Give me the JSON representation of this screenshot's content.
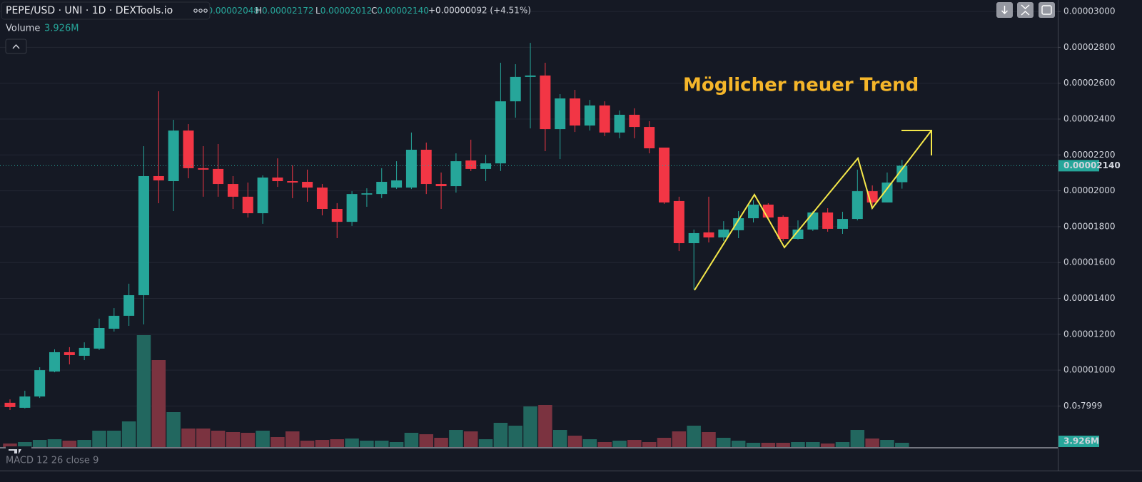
{
  "chart_data": {
    "type": "candlestick",
    "title": "PEPE/USD · UNI · 1D · DEXTools.io",
    "ohlc_header": [
      {
        "key": "O",
        "label": "0.00002048"
      },
      {
        "key": "H",
        "label": "0.00002172"
      },
      {
        "key": "L",
        "label": "0.00002012"
      },
      {
        "key": "C",
        "label": "0.00002140"
      }
    ],
    "change_label": "+0.00000092 (+4.51%)",
    "volume_title": "Volume",
    "volume_label": "3.926M",
    "annotation": "Möglicher neuer Trend",
    "indicator": "MACD 12 26 close 9",
    "up_color": "#26a69a",
    "down_color": "#f23645",
    "volume_up_color": "#22675f",
    "volume_down_color": "#7b3340",
    "grid": true,
    "ylim": [
      5.71e-06,
      3.064e-05
    ],
    "yticks": [
      {
        "value": 3e-05,
        "label": "0.00003000"
      },
      {
        "value": 2.8e-05,
        "label": "0.00002800"
      },
      {
        "value": 2.6e-05,
        "label": "0.00002600"
      },
      {
        "value": 2.4e-05,
        "label": "0.00002400"
      },
      {
        "value": 2.2e-05,
        "label": "0.00002200"
      },
      {
        "value": 2e-05,
        "label": "0.00002000"
      },
      {
        "value": 1.8e-05,
        "label": "0.00001800"
      },
      {
        "value": 1.6e-05,
        "label": "0.00001600"
      },
      {
        "value": 1.4e-05,
        "label": "0.00001400"
      },
      {
        "value": 1.2e-05,
        "label": "0.00001200"
      },
      {
        "value": 1e-05,
        "label": "0.00001000"
      },
      {
        "value": 7.999e-06,
        "label": "0.0₅7999"
      }
    ],
    "last_price": {
      "value": 2.14e-05,
      "label": "0.00002140"
    },
    "open": [
      8.18e-06,
      7.9e-06,
      8.53e-06,
      9.92e-06,
      1.1e-05,
      1.08e-05,
      1.12e-05,
      1.231e-05,
      1.303e-05,
      1.418e-05,
      2.082e-05,
      2.054e-05,
      2.336e-05,
      2.126e-05,
      2.122e-05,
      2.038e-05,
      1.967e-05,
      1.875e-05,
      2.074e-05,
      2.054e-05,
      2.05e-05,
      2.018e-05,
      1.899e-05,
      1.827e-05,
      1.979e-05,
      1.982e-05,
      2.018e-05,
      2.018e-05,
      2.229e-05,
      2.038e-05,
      2.026e-05,
      2.169e-05,
      2.122e-05,
      2.153e-05,
      2.499e-05,
      2.635e-05,
      2.643e-05,
      2.344e-05,
      2.515e-05,
      2.364e-05,
      2.476e-05,
      2.325e-05,
      2.424e-05,
      2.356e-05,
      2.241e-05,
      1.943e-05,
      1.708e-05,
      1.768e-05,
      1.74e-05,
      1.78e-05,
      1.847e-05,
      1.923e-05,
      1.855e-05,
      1.732e-05,
      1.784e-05,
      1.879e-05,
      1.788e-05,
      1.843e-05,
      1.998e-05,
      1.935e-05,
      2.048e-05
    ],
    "high": [
      8.37e-06,
      8.85e-06,
      1.016e-05,
      1.116e-05,
      1.128e-05,
      1.155e-05,
      1.287e-05,
      1.346e-05,
      1.482e-05,
      2.249e-05,
      2.555e-05,
      2.396e-05,
      2.372e-05,
      2.249e-05,
      2.261e-05,
      2.082e-05,
      2.046e-05,
      2.086e-05,
      2.181e-05,
      2.142e-05,
      2.118e-05,
      2.038e-05,
      1.931e-05,
      1.998e-05,
      2.014e-05,
      2.126e-05,
      2.165e-05,
      2.325e-05,
      2.269e-05,
      2.102e-05,
      2.209e-05,
      2.285e-05,
      2.201e-05,
      2.714e-05,
      2.706e-05,
      2.825e-05,
      2.714e-05,
      2.539e-05,
      2.563e-05,
      2.507e-05,
      2.499e-05,
      2.448e-05,
      2.46e-05,
      2.388e-05,
      2.241e-05,
      1.967e-05,
      1.784e-05,
      1.967e-05,
      1.831e-05,
      1.887e-05,
      1.947e-05,
      1.931e-05,
      1.863e-05,
      1.835e-05,
      1.887e-05,
      1.903e-05,
      1.883e-05,
      2.118e-05,
      2.03e-05,
      2.102e-05,
      2.172e-05
    ],
    "low": [
      7.78e-06,
      7.86e-06,
      8.45e-06,
      9.88e-06,
      1.032e-05,
      1.056e-05,
      1.112e-05,
      1.215e-05,
      1.247e-05,
      1.255e-05,
      1.931e-05,
      1.887e-05,
      2.07e-05,
      1.967e-05,
      1.967e-05,
      1.899e-05,
      1.851e-05,
      1.816e-05,
      2.022e-05,
      1.959e-05,
      1.939e-05,
      1.863e-05,
      1.736e-05,
      1.804e-05,
      1.911e-05,
      1.959e-05,
      2.01e-05,
      2.01e-05,
      1.982e-05,
      1.899e-05,
      1.99e-05,
      2.11e-05,
      2.054e-05,
      2.11e-05,
      2.408e-05,
      2.348e-05,
      2.221e-05,
      2.177e-05,
      2.328e-05,
      2.336e-05,
      2.305e-05,
      2.293e-05,
      2.293e-05,
      2.209e-05,
      1.927e-05,
      1.664e-05,
      1.45e-05,
      1.712e-05,
      1.72e-05,
      1.736e-05,
      1.824e-05,
      1.843e-05,
      1.72e-05,
      1.728e-05,
      1.776e-05,
      1.772e-05,
      1.76e-05,
      1.835e-05,
      1.911e-05,
      1.935e-05,
      2.012e-05
    ],
    "close": [
      7.94e-06,
      8.53e-06,
      1e-05,
      1.1e-05,
      1.084e-05,
      1.124e-05,
      1.235e-05,
      1.303e-05,
      1.418e-05,
      2.082e-05,
      2.058e-05,
      2.336e-05,
      2.126e-05,
      2.118e-05,
      2.038e-05,
      1.967e-05,
      1.875e-05,
      2.074e-05,
      2.054e-05,
      2.046e-05,
      2.018e-05,
      1.899e-05,
      1.827e-05,
      1.982e-05,
      1.986e-05,
      2.05e-05,
      2.058e-05,
      2.229e-05,
      2.038e-05,
      2.026e-05,
      2.165e-05,
      2.122e-05,
      2.153e-05,
      2.499e-05,
      2.635e-05,
      2.643e-05,
      2.344e-05,
      2.515e-05,
      2.364e-05,
      2.476e-05,
      2.325e-05,
      2.424e-05,
      2.356e-05,
      2.237e-05,
      1.935e-05,
      1.708e-05,
      1.764e-05,
      1.74e-05,
      1.784e-05,
      1.847e-05,
      1.923e-05,
      1.851e-05,
      1.732e-05,
      1.784e-05,
      1.879e-05,
      1.788e-05,
      1.843e-05,
      1.998e-05,
      1.935e-05,
      2.046e-05,
      2.14e-05
    ],
    "volume": [
      3270000,
      4580000,
      6540000,
      7200000,
      5890000,
      6540000,
      15050000,
      15050000,
      23550000,
      102720000,
      79820000,
      32060000,
      17010000,
      17010000,
      15050000,
      13740000,
      13090000,
      15050000,
      9160000,
      14390000,
      5890000,
      6540000,
      7200000,
      7850000,
      5890000,
      5890000,
      4580000,
      13090000,
      11780000,
      8510000,
      15700000,
      14390000,
      7200000,
      22250000,
      19630000,
      37290000,
      38600000,
      15700000,
      10470000,
      7200000,
      4580000,
      5890000,
      6540000,
      4580000,
      8510000,
      14390000,
      19630000,
      13740000,
      8510000,
      5890000,
      3930000,
      3930000,
      3930000,
      4580000,
      4580000,
      3270000,
      4580000,
      15700000,
      7850000,
      6540000,
      3926000
    ]
  }
}
